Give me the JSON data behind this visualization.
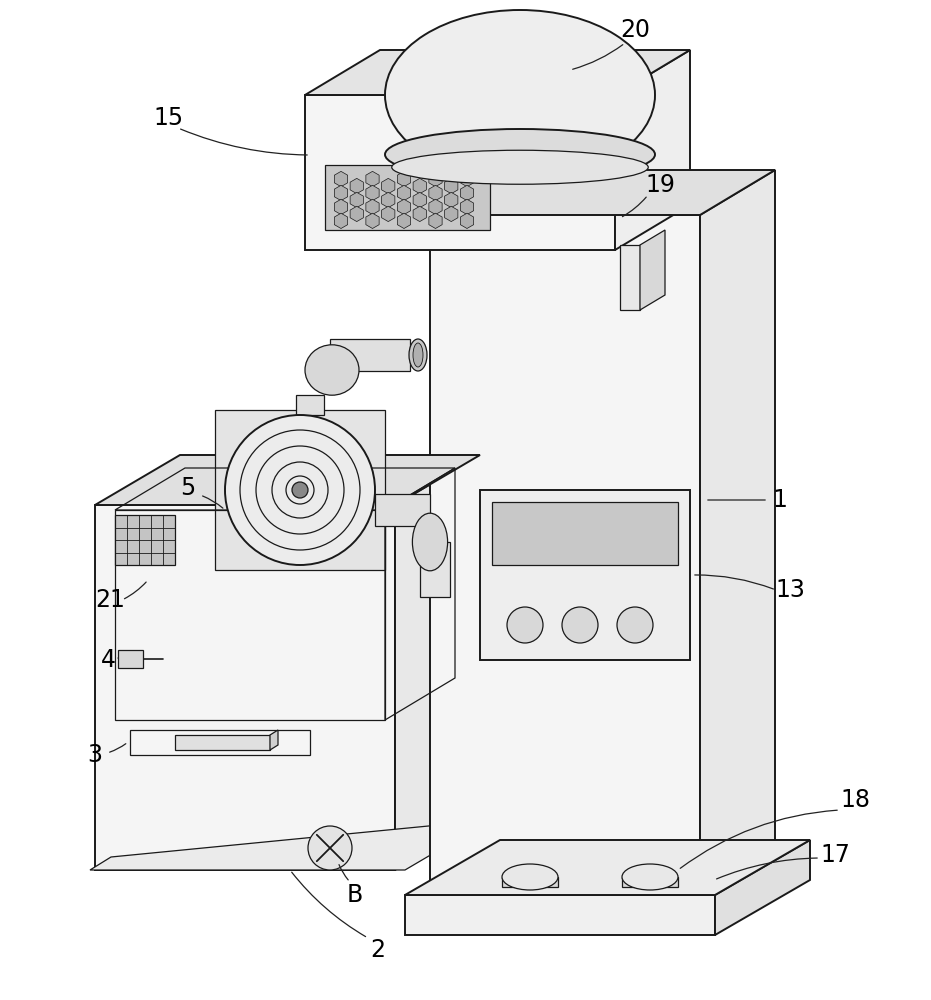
{
  "background_color": "#ffffff",
  "line_color": "#1a1a1a",
  "fill_white": "#f8f8f8",
  "fill_light": "#f0f0f0",
  "fill_mid": "#e0e0e0",
  "fill_dark": "#cccccc",
  "fill_darker": "#b8b8b8",
  "fig_width": 9.31,
  "fig_height": 10.0,
  "dpi": 100
}
